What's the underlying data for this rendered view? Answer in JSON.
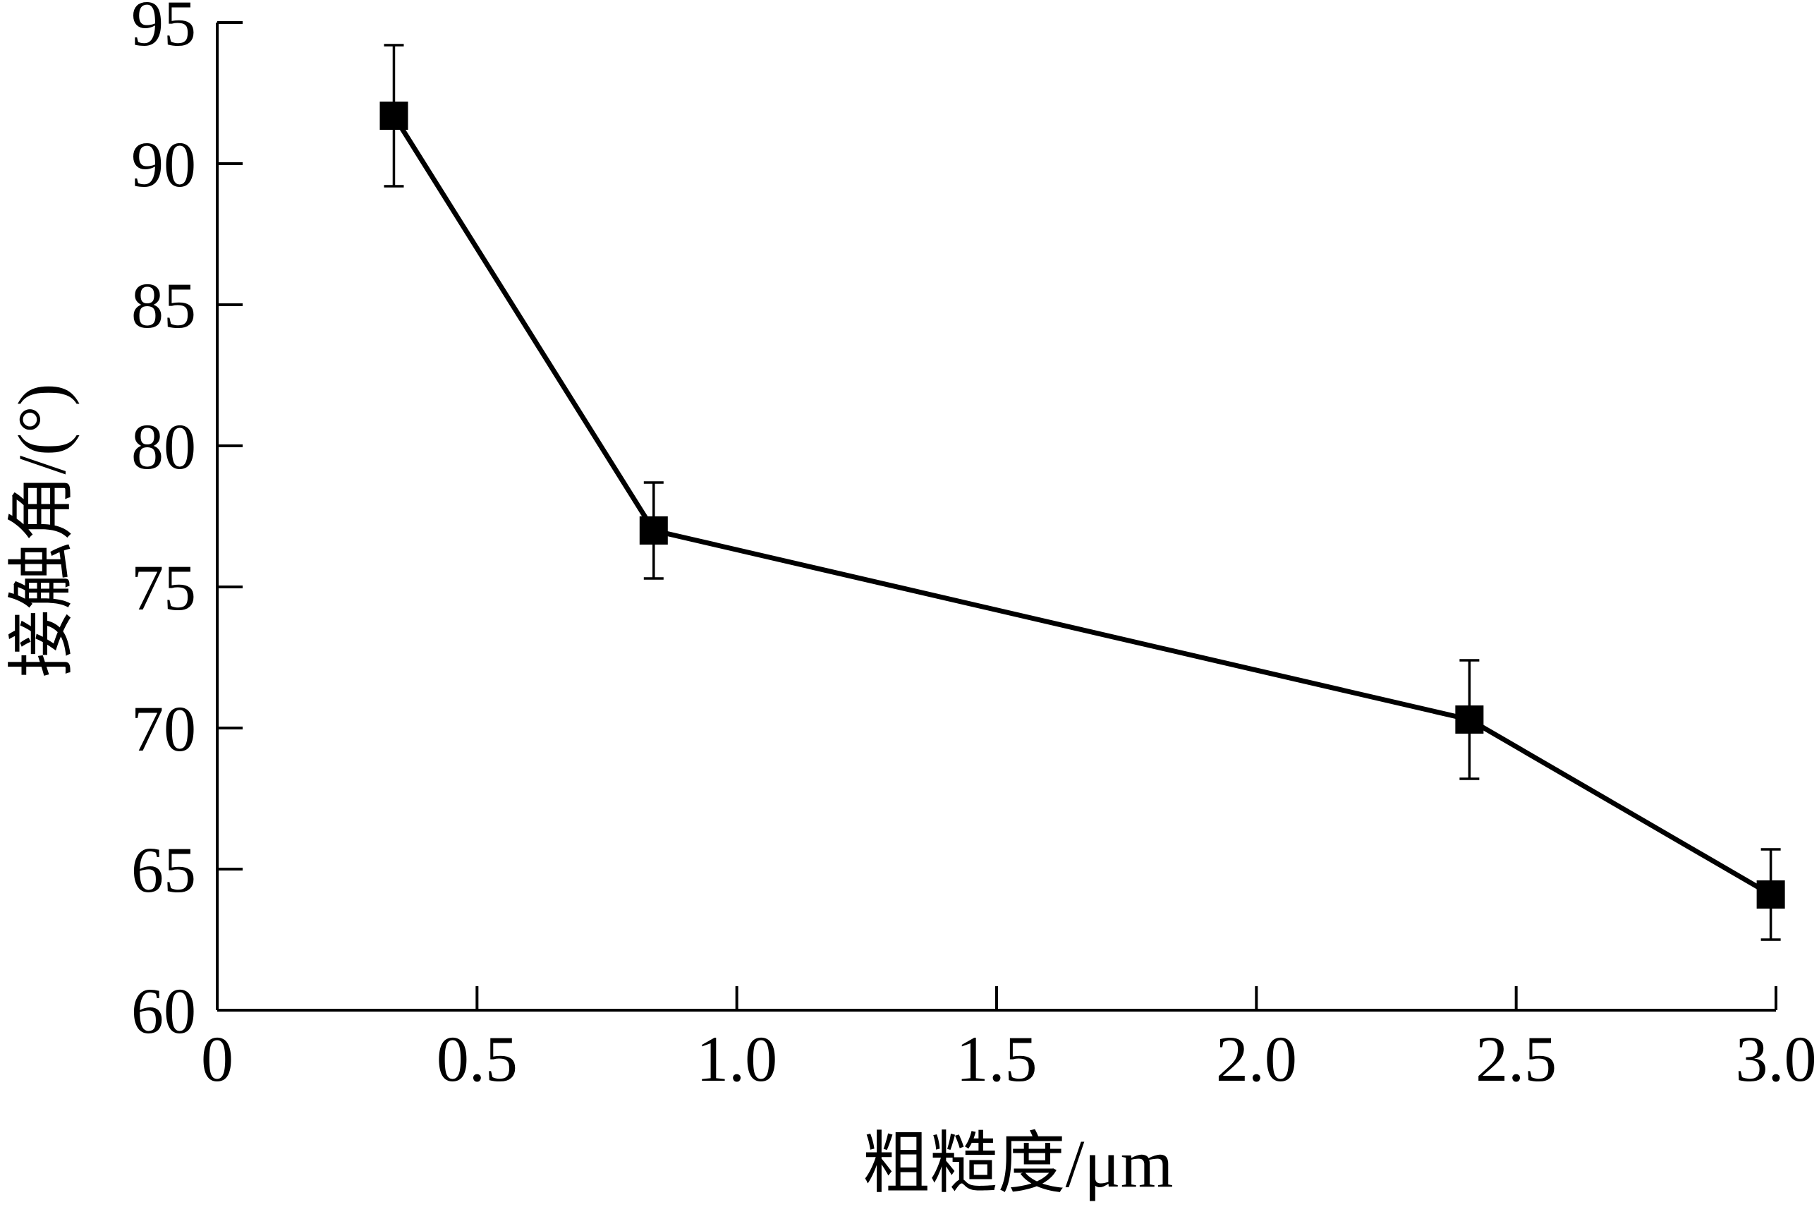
{
  "chart_data": {
    "type": "line",
    "title": "",
    "xlabel": "粗糙度/μm",
    "ylabel": "接触角/(°)",
    "xlim": [
      0,
      3.0
    ],
    "ylim": [
      60,
      95
    ],
    "x_ticks": [
      "0",
      "0.5",
      "1.0",
      "1.5",
      "2.0",
      "2.5",
      "3.0"
    ],
    "y_ticks": [
      "60",
      "65",
      "70",
      "75",
      "80",
      "85",
      "90",
      "95"
    ],
    "grid": false,
    "legend": "none",
    "series": [
      {
        "x": [
          0.34,
          0.84,
          2.41,
          2.99
        ],
        "y": [
          91.7,
          77.0,
          70.3,
          64.1
        ],
        "error": [
          2.5,
          1.7,
          2.1,
          1.6
        ],
        "marker": "square",
        "color": "#000000"
      }
    ]
  }
}
